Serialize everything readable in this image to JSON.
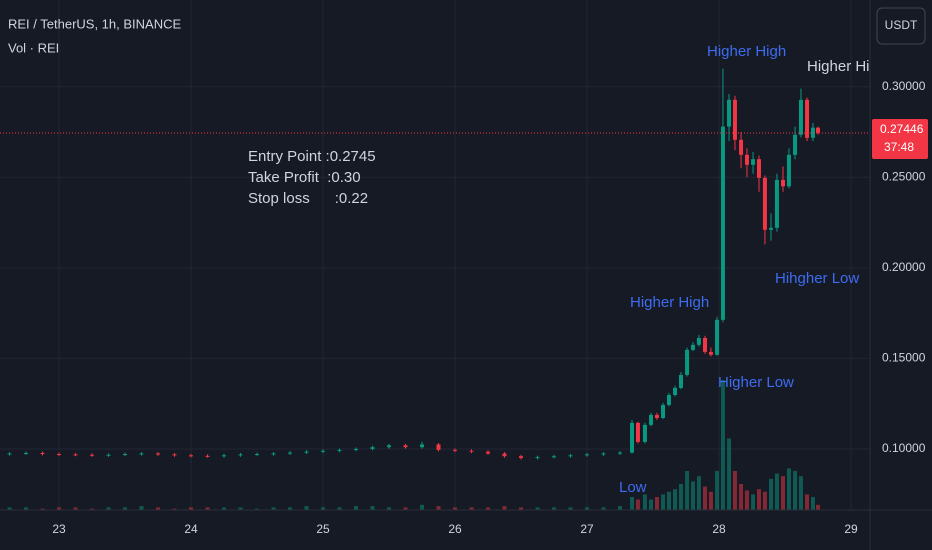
{
  "header": {
    "symbol": "REI / TetherUS, 1h, BINANCE",
    "volume_label": "Vol · REI",
    "currency_button": "USDT"
  },
  "chart_data": {
    "type": "candlestick",
    "up_color": "#089981",
    "down_color": "#f23645",
    "grid": true,
    "xlim": [
      22.553,
      29.144
    ],
    "xticks": [
      23,
      24,
      25,
      26,
      27,
      28,
      29
    ],
    "ylim": [
      0.0663,
      0.3479
    ],
    "yticks": [
      {
        "value": 0.1,
        "label": "0.10000"
      },
      {
        "value": 0.15,
        "label": "0.15000"
      },
      {
        "value": 0.2,
        "label": "0.20000"
      },
      {
        "value": 0.25,
        "label": "0.25000"
      },
      {
        "value": 0.3,
        "label": "0.30000"
      }
    ],
    "last_price": 0.27446,
    "countdown": "37:48",
    "volume_lim": [
      0,
      100
    ],
    "candles": [
      [
        22.625,
        0.0972,
        0.0983,
        0.0964,
        0.0975
      ],
      [
        22.75,
        0.0975,
        0.0986,
        0.0967,
        0.0978
      ],
      [
        22.875,
        0.0978,
        0.0986,
        0.0964,
        0.0972
      ],
      [
        23.0,
        0.0972,
        0.098,
        0.0962,
        0.097
      ],
      [
        23.125,
        0.097,
        0.0978,
        0.096,
        0.0968
      ],
      [
        23.25,
        0.0968,
        0.0976,
        0.0957,
        0.0965
      ],
      [
        23.375,
        0.0965,
        0.0976,
        0.0957,
        0.0968
      ],
      [
        23.5,
        0.0968,
        0.098,
        0.096,
        0.0972
      ],
      [
        23.625,
        0.0972,
        0.0983,
        0.0964,
        0.0975
      ],
      [
        23.75,
        0.0975,
        0.0983,
        0.0962,
        0.097
      ],
      [
        23.875,
        0.097,
        0.0978,
        0.0957,
        0.0965
      ],
      [
        24.0,
        0.0965,
        0.0973,
        0.0954,
        0.0962
      ],
      [
        24.125,
        0.0962,
        0.097,
        0.0952,
        0.096
      ],
      [
        24.25,
        0.096,
        0.0973,
        0.0952,
        0.0965
      ],
      [
        24.375,
        0.0965,
        0.0978,
        0.0957,
        0.097
      ],
      [
        24.5,
        0.097,
        0.098,
        0.0962,
        0.0972
      ],
      [
        24.625,
        0.0972,
        0.0983,
        0.0964,
        0.0975
      ],
      [
        24.75,
        0.0975,
        0.0988,
        0.0967,
        0.098
      ],
      [
        24.875,
        0.098,
        0.0993,
        0.0972,
        0.0985
      ],
      [
        25.0,
        0.0985,
        0.0998,
        0.0977,
        0.099
      ],
      [
        25.125,
        0.099,
        0.1003,
        0.0982,
        0.0995
      ],
      [
        25.25,
        0.0995,
        0.1008,
        0.0987,
        0.1
      ],
      [
        25.375,
        0.1,
        0.1018,
        0.0992,
        0.101
      ],
      [
        25.5,
        0.101,
        0.1028,
        0.1002,
        0.102
      ],
      [
        25.625,
        0.102,
        0.1028,
        0.1002,
        0.101
      ],
      [
        25.75,
        0.101,
        0.104,
        0.1002,
        0.1025
      ],
      [
        25.875,
        0.1025,
        0.1033,
        0.0987,
        0.0995
      ],
      [
        26.0,
        0.0995,
        0.1003,
        0.0982,
        0.099
      ],
      [
        26.125,
        0.099,
        0.0998,
        0.0977,
        0.0985
      ],
      [
        26.25,
        0.0985,
        0.0993,
        0.0967,
        0.0975
      ],
      [
        26.375,
        0.0975,
        0.0983,
        0.0952,
        0.096
      ],
      [
        26.5,
        0.096,
        0.0968,
        0.0942,
        0.095
      ],
      [
        26.625,
        0.095,
        0.0963,
        0.0942,
        0.0955
      ],
      [
        26.75,
        0.0955,
        0.0968,
        0.0947,
        0.096
      ],
      [
        26.875,
        0.096,
        0.0973,
        0.0952,
        0.0965
      ],
      [
        27.0,
        0.0965,
        0.0978,
        0.0957,
        0.097
      ],
      [
        27.125,
        0.097,
        0.0983,
        0.0962,
        0.0975
      ],
      [
        27.25,
        0.0975,
        0.0988,
        0.0967,
        0.098
      ],
      [
        27.341,
        0.098,
        0.116,
        0.0975,
        0.1144
      ],
      [
        27.386,
        0.1144,
        0.115,
        0.103,
        0.1039
      ],
      [
        27.439,
        0.1039,
        0.1145,
        0.103,
        0.1133
      ],
      [
        27.485,
        0.1133,
        0.12,
        0.1125,
        0.1188
      ],
      [
        27.53,
        0.1188,
        0.12,
        0.116,
        0.1171
      ],
      [
        27.576,
        0.1171,
        0.1255,
        0.1165,
        0.1243
      ],
      [
        27.621,
        0.1243,
        0.131,
        0.1235,
        0.1298
      ],
      [
        27.667,
        0.1298,
        0.135,
        0.129,
        0.1337
      ],
      [
        27.712,
        0.1337,
        0.1425,
        0.133,
        0.1409
      ],
      [
        27.758,
        0.1409,
        0.156,
        0.14,
        0.1547
      ],
      [
        27.803,
        0.1547,
        0.159,
        0.154,
        0.1575
      ],
      [
        27.848,
        0.1575,
        0.163,
        0.1565,
        0.1613
      ],
      [
        27.894,
        0.1613,
        0.1625,
        0.1525,
        0.1536
      ],
      [
        27.939,
        0.1536,
        0.156,
        0.151,
        0.152
      ],
      [
        27.985,
        0.152,
        0.173,
        0.1515,
        0.1713
      ],
      [
        28.03,
        0.1713,
        0.31,
        0.17,
        0.278
      ],
      [
        28.076,
        0.278,
        0.296,
        0.27,
        0.2928
      ],
      [
        28.121,
        0.2928,
        0.295,
        0.265,
        0.2707
      ],
      [
        28.167,
        0.2707,
        0.275,
        0.255,
        0.2624
      ],
      [
        28.212,
        0.2624,
        0.266,
        0.25,
        0.2569
      ],
      [
        28.258,
        0.2569,
        0.264,
        0.252,
        0.26
      ],
      [
        28.303,
        0.26,
        0.262,
        0.242,
        0.2497
      ],
      [
        28.348,
        0.2497,
        0.251,
        0.213,
        0.221
      ],
      [
        28.394,
        0.221,
        0.23,
        0.215,
        0.2221
      ],
      [
        28.439,
        0.2221,
        0.252,
        0.22,
        0.2486
      ],
      [
        28.485,
        0.2486,
        0.256,
        0.242,
        0.245
      ],
      [
        28.53,
        0.245,
        0.266,
        0.244,
        0.2624
      ],
      [
        28.576,
        0.2624,
        0.278,
        0.26,
        0.2735
      ],
      [
        28.621,
        0.2735,
        0.299,
        0.272,
        0.2928
      ],
      [
        28.667,
        0.2928,
        0.294,
        0.27,
        0.2718
      ],
      [
        28.712,
        0.2718,
        0.28,
        0.27,
        0.2774
      ],
      [
        28.75,
        0.2774,
        0.278,
        0.2735,
        0.2745
      ]
    ],
    "volume": [
      2,
      2,
      1,
      2,
      2,
      1,
      2,
      2,
      3,
      2,
      1,
      2,
      2,
      2,
      2,
      1,
      2,
      2,
      3,
      2,
      2,
      3,
      3,
      2,
      2,
      4,
      3,
      2,
      2,
      2,
      3,
      2,
      2,
      2,
      2,
      2,
      2,
      3,
      10,
      8,
      12,
      8,
      10,
      12,
      14,
      16,
      20,
      30,
      22,
      26,
      18,
      14,
      30,
      100,
      55,
      30,
      20,
      15,
      12,
      16,
      14,
      24,
      28,
      26,
      32,
      30,
      26,
      12,
      10,
      4
    ],
    "annotations": [
      "Higher High",
      "Higher High",
      "Hihgher Low",
      "Higher High",
      "Higher Low",
      "Low"
    ],
    "note_lines": [
      "Entry Point :0.2745",
      "Take Profit  :0.30",
      "Stop loss      :0.22"
    ]
  }
}
